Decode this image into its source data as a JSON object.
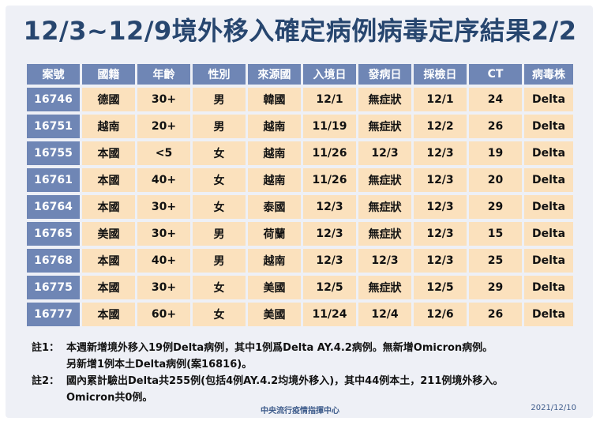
{
  "title": "12/3~12/9境外移入確定病例病毒定序結果2/2",
  "table": {
    "headers": [
      "案號",
      "國籍",
      "年齡",
      "性別",
      "來源國",
      "入境日",
      "發病日",
      "採檢日",
      "CT",
      "病毒株"
    ],
    "rows": [
      [
        "16746",
        "德國",
        "30+",
        "男",
        "韓國",
        "12/1",
        "無症狀",
        "12/1",
        "24",
        "Delta"
      ],
      [
        "16751",
        "越南",
        "20+",
        "男",
        "越南",
        "11/19",
        "無症狀",
        "12/2",
        "26",
        "Delta"
      ],
      [
        "16755",
        "本國",
        "<5",
        "女",
        "越南",
        "11/26",
        "12/3",
        "12/3",
        "19",
        "Delta"
      ],
      [
        "16761",
        "本國",
        "40+",
        "女",
        "越南",
        "11/26",
        "無症狀",
        "12/3",
        "20",
        "Delta"
      ],
      [
        "16764",
        "本國",
        "30+",
        "女",
        "泰國",
        "12/3",
        "無症狀",
        "12/3",
        "29",
        "Delta"
      ],
      [
        "16765",
        "美國",
        "30+",
        "男",
        "荷蘭",
        "12/3",
        "無症狀",
        "12/3",
        "15",
        "Delta"
      ],
      [
        "16768",
        "本國",
        "40+",
        "男",
        "越南",
        "12/3",
        "12/3",
        "12/3",
        "25",
        "Delta"
      ],
      [
        "16775",
        "本國",
        "30+",
        "女",
        "美國",
        "12/5",
        "無症狀",
        "12/5",
        "29",
        "Delta"
      ],
      [
        "16777",
        "本國",
        "60+",
        "女",
        "美國",
        "11/24",
        "12/4",
        "12/6",
        "26",
        "Delta"
      ]
    ]
  },
  "notes": [
    {
      "label": "註1：",
      "lines": [
        "本週新增境外移入19例Delta病例，其中1例爲Delta AY.4.2病例。無新增Omicron病例。",
        "另新增1例本土Delta病例(案16816)。"
      ]
    },
    {
      "label": "註2：",
      "lines": [
        "國內累計驗出Delta共255例(包括4例AY.4.2均境外移入)，其中44例本土，211例境外移入。",
        "Omicron共0例。"
      ]
    }
  ],
  "footer": {
    "org": "中央流行疫情指揮中心",
    "date": "2021/12/10"
  }
}
